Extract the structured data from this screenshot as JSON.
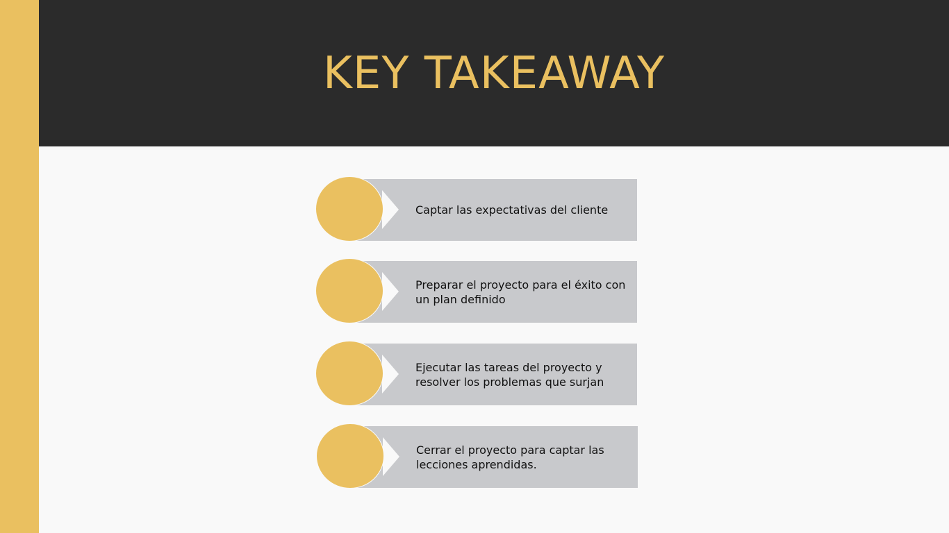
{
  "slide": {
    "title": "KEY TAKEAWAY"
  },
  "steps": [
    {
      "text": "Captar las expectativas del cliente"
    },
    {
      "text": "Preparar el proyecto para el éxito con un plan definido"
    },
    {
      "text": "Ejecutar las tareas del proyecto y resolver los problemas que surjan"
    },
    {
      "text": "Cerrar el proyecto para captar las lecciones aprendidas."
    }
  ],
  "colors": {
    "accent": "#eac060",
    "header_bg": "#2b2b2b",
    "box_bg": "#c8c9cc",
    "page_bg": "#f9f9f9"
  }
}
